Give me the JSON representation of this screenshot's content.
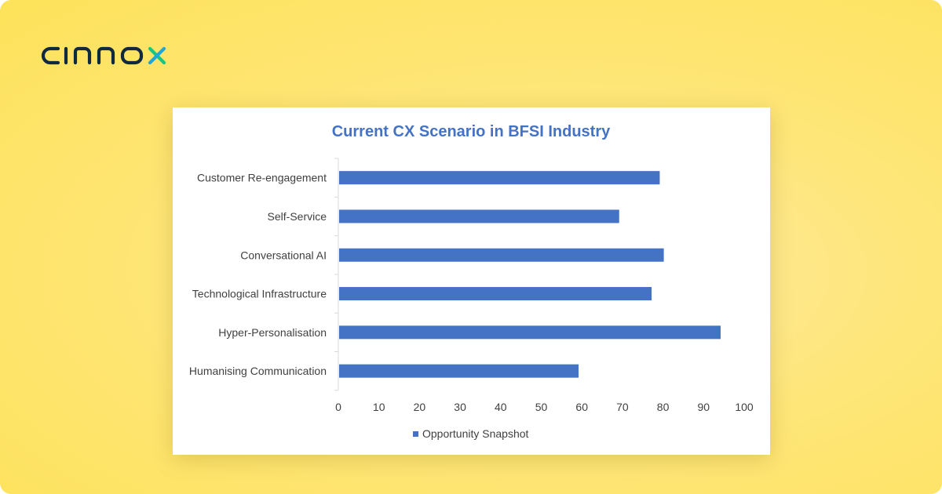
{
  "brand": {
    "name": "cinnox",
    "colors": {
      "dark": "#0f2a3f",
      "green": "#16c784",
      "accent": "#1ea7d8"
    }
  },
  "chart_data": {
    "type": "bar",
    "orientation": "horizontal",
    "title": "Current CX Scenario in BFSI Industry",
    "categories": [
      "Customer Re-engagement",
      "Self-Service",
      "Conversational AI",
      "Technological Infrastructure",
      "Hyper-Personalisation",
      "Humanising Communication"
    ],
    "series": [
      {
        "name": "Opportunity Snapshot",
        "values": [
          79,
          69,
          80,
          77,
          94,
          59
        ],
        "color": "#4472c4"
      }
    ],
    "xlim": [
      0,
      100
    ],
    "xticks": [
      "0",
      "10",
      "20",
      "30",
      "40",
      "50",
      "60",
      "70",
      "80",
      "90",
      "100"
    ],
    "grid": false,
    "legend": "bottom"
  }
}
